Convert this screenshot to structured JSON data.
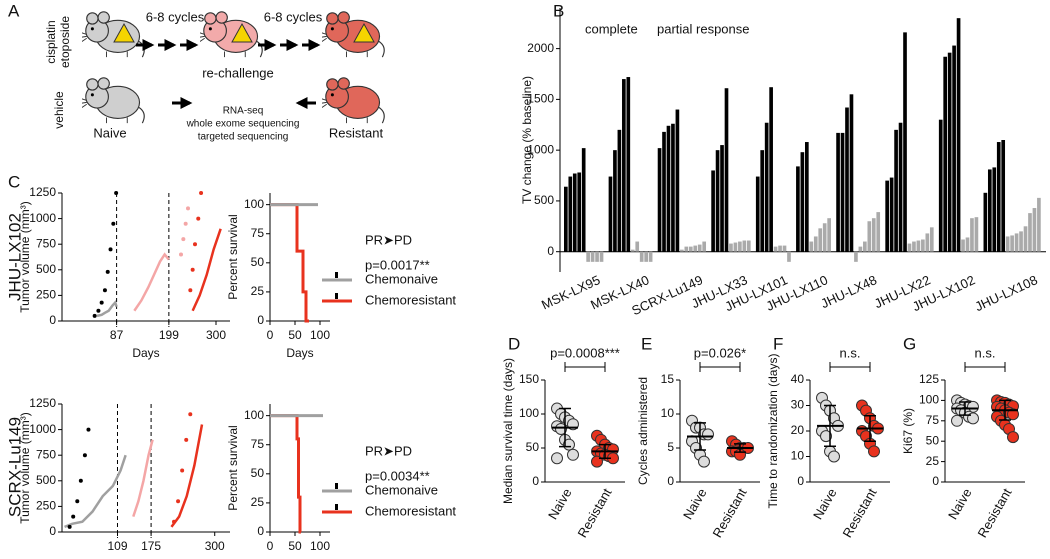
{
  "panel_labels": [
    "A",
    "B",
    "C",
    "D",
    "E",
    "F",
    "G"
  ],
  "row_labels": [
    "JHU-LX102",
    "SCRX-Lu149"
  ],
  "diagram": {
    "treatment_label": [
      "cisplatin",
      "etoposide"
    ],
    "control_label": "vehicle",
    "cycles": [
      "6-8 cycles",
      "6-8 cycles"
    ],
    "rechallenge": "re-challenge",
    "naive": "Naive",
    "resistant": "Resistant",
    "sequencing": [
      "RNA-seq",
      "whole exome sequencing",
      "targeted sequencing"
    ]
  },
  "chart_data": [
    {
      "type": "bar",
      "ylabel": "TV change (% baseline)",
      "annotations": [
        "complete",
        "partial response"
      ],
      "categories": [
        "MSK-LX95",
        "MSK-LX40",
        "SCRX-Lu149",
        "JHU-LX33",
        "JHU-LX101",
        "JHU-LX110",
        "JHU-LX48",
        "JHU-LX22",
        "JHU-LX102",
        "JHU-LX108"
      ],
      "series": [
        {
          "color": "#000000",
          "values": [
            [
              640,
              740,
              770,
              780,
              1020
            ],
            [
              740,
              1000,
              1200,
              1700,
              1720
            ],
            [
              1020,
              1180,
              1240,
              1260,
              1400
            ],
            [
              800,
              1000,
              1050,
              1610
            ],
            [
              740,
              1000,
              1270,
              1620
            ],
            [
              840,
              980,
              1080
            ],
            [
              1170,
              1170,
              1420,
              1550
            ],
            [
              700,
              730,
              1200,
              1270,
              2160
            ],
            [
              1300,
              1920,
              1960,
              2030,
              2300
            ],
            [
              580,
              810,
              830,
              1080,
              1100
            ]
          ]
        },
        {
          "color": "#aaaaaa",
          "values": [
            [
              -100,
              -100,
              -100,
              -100
            ],
            [
              20,
              100,
              -100,
              -100,
              -100
            ],
            [
              20,
              50,
              50,
              60,
              70,
              100
            ],
            [
              80,
              90,
              100,
              110,
              110
            ],
            [
              50,
              60,
              60,
              -100
            ],
            [
              100,
              150,
              230,
              280,
              330
            ],
            [
              -100,
              50,
              100,
              300,
              330,
              390
            ],
            [
              80,
              100,
              110,
              120,
              180,
              240
            ],
            [
              120,
              140,
              330,
              340
            ],
            [
              150,
              160,
              180,
              200,
              250,
              380,
              430,
              530
            ]
          ]
        }
      ],
      "ylim": [
        -200,
        2400
      ],
      "yticks": [
        0,
        500,
        1000,
        1500,
        2000
      ]
    },
    {
      "type": "line",
      "ylabel": "Tumor volume (mm³)",
      "xlabel": "Days",
      "xlim": [
        -30,
        330
      ],
      "xticks": [
        87,
        199,
        300
      ],
      "vlines": [
        87,
        199
      ],
      "ylim": [
        0,
        1250
      ],
      "yticks": [
        0,
        250,
        500,
        750,
        1000,
        1250
      ],
      "series": [
        {
          "color": "#000000",
          "style": "dotted",
          "x": [
            40,
            48,
            55,
            62,
            68,
            74,
            80,
            86
          ],
          "values": [
            50,
            100,
            180,
            300,
            480,
            700,
            950,
            1250
          ]
        },
        {
          "color": "#a0a0a0",
          "style": "solid",
          "x": [
            45,
            55,
            62,
            70,
            78,
            84,
            87
          ],
          "values": [
            50,
            60,
            80,
            100,
            150,
            180,
            140
          ]
        },
        {
          "color": "#f4a6a6",
          "style": "solid",
          "x": [
            125,
            140,
            155,
            170,
            180,
            190,
            199
          ],
          "values": [
            100,
            200,
            330,
            480,
            580,
            650,
            600
          ]
        },
        {
          "color": "#f4a6a6",
          "style": "dotted",
          "x": [
            225,
            230,
            235,
            240
          ],
          "values": [
            650,
            800,
            950,
            1100
          ]
        },
        {
          "color": "#e8321e",
          "style": "dotted",
          "x": [
            245,
            250,
            255,
            262,
            268
          ],
          "values": [
            300,
            500,
            750,
            1000,
            1250
          ]
        },
        {
          "color": "#e8321e",
          "style": "solid",
          "x": [
            250,
            265,
            280,
            295,
            310
          ],
          "values": [
            100,
            250,
            450,
            700,
            900
          ]
        }
      ]
    },
    {
      "type": "line",
      "ylabel": "Percent survival",
      "xlabel": "Days",
      "xlim": [
        0,
        120
      ],
      "xticks": [
        0,
        50,
        100
      ],
      "ylim": [
        0,
        110
      ],
      "yticks": [
        0,
        25,
        50,
        75,
        100
      ],
      "annotations": [
        "PR➤PD",
        "p=0.0017**"
      ],
      "series": [
        {
          "name": "Chemonaive",
          "color": "#a0a0a0",
          "style": "solid",
          "x": [
            0,
            96
          ],
          "values": [
            100,
            100
          ]
        },
        {
          "name": "Chemoresistant",
          "color": "#e8321e",
          "style": "solid",
          "x": [
            0,
            54,
            54,
            66,
            66,
            72,
            72,
            78
          ],
          "values": [
            100,
            100,
            60,
            60,
            25,
            25,
            0,
            0
          ]
        }
      ]
    },
    {
      "type": "line",
      "ylabel": "Tumor volume (mm³)",
      "xlabel": "Days",
      "xlim": [
        0,
        330
      ],
      "xticks": [
        109,
        175,
        300
      ],
      "vlines": [
        109,
        175
      ],
      "ylim": [
        0,
        1250
      ],
      "yticks": [
        0,
        250,
        500,
        750,
        1000,
        1250
      ],
      "series": [
        {
          "color": "#000000",
          "style": "dotted",
          "x": [
            15,
            22,
            30,
            37,
            45,
            52
          ],
          "values": [
            50,
            150,
            300,
            500,
            750,
            1000
          ]
        },
        {
          "color": "#a0a0a0",
          "style": "solid",
          "x": [
            5,
            20,
            40,
            60,
            80,
            100,
            115,
            125
          ],
          "values": [
            50,
            80,
            100,
            200,
            350,
            450,
            600,
            750
          ]
        },
        {
          "color": "#f4a6a6",
          "style": "solid",
          "x": [
            140,
            150,
            160,
            170,
            178
          ],
          "values": [
            150,
            300,
            500,
            750,
            900
          ]
        },
        {
          "color": "#e8321e",
          "style": "dotted",
          "x": [
            220,
            228,
            236,
            244,
            252
          ],
          "values": [
            100,
            300,
            600,
            900,
            1150
          ]
        },
        {
          "color": "#e8321e",
          "style": "solid",
          "x": [
            215,
            230,
            245,
            260,
            275
          ],
          "values": [
            50,
            150,
            350,
            650,
            1050
          ]
        }
      ]
    },
    {
      "type": "line",
      "ylabel": "Percent survival",
      "xlabel": "Days",
      "xlim": [
        0,
        120
      ],
      "xticks": [
        0,
        50,
        100
      ],
      "ylim": [
        0,
        110
      ],
      "yticks": [
        0,
        25,
        50,
        75,
        100
      ],
      "annotations": [
        "PR➤PD",
        "p=0.0034**"
      ],
      "series": [
        {
          "name": "Chemonaive",
          "color": "#a0a0a0",
          "style": "solid",
          "x": [
            0,
            106
          ],
          "values": [
            100,
            100
          ]
        },
        {
          "name": "Chemoresistant",
          "color": "#e8321e",
          "style": "solid",
          "x": [
            0,
            54,
            54,
            57,
            57,
            60,
            60,
            62
          ],
          "values": [
            100,
            100,
            80,
            80,
            30,
            30,
            0,
            0
          ]
        }
      ]
    },
    {
      "type": "dotplot",
      "ylabel": "Median survival time (days)",
      "annotation": "p=0.0008***",
      "categories": [
        "Naive",
        "Resistant"
      ],
      "values": [
        [
          108,
          100,
          95,
          90,
          85,
          82,
          78,
          62,
          55,
          40,
          35
        ],
        [
          68,
          62,
          55,
          50,
          48,
          45,
          42,
          40,
          38,
          35,
          30
        ]
      ],
      "means": [
        80,
        45
      ],
      "errors": [
        28,
        10
      ],
      "colors": [
        "#dddddd",
        "#e8321e"
      ],
      "ylim": [
        0,
        150
      ],
      "yticks": [
        0,
        50,
        100,
        150
      ]
    },
    {
      "type": "dotplot",
      "ylabel": "Cycles administered",
      "annotation": "p=0.026*",
      "categories": [
        "Naive",
        "Resistant"
      ],
      "values": [
        [
          9,
          8,
          8,
          7,
          7,
          6,
          5,
          4,
          3
        ],
        [
          6,
          5.5,
          5,
          5,
          5,
          4.5,
          4.5,
          4
        ]
      ],
      "means": [
        6.7,
        5
      ],
      "errors": [
        2,
        0.6
      ],
      "colors": [
        "#dddddd",
        "#e8321e"
      ],
      "ylim": [
        0,
        15
      ],
      "yticks": [
        0,
        5,
        10,
        15
      ]
    },
    {
      "type": "dotplot",
      "ylabel": "Time to randomization (days)",
      "annotation": "n.s.",
      "categories": [
        "Naive",
        "Resistant"
      ],
      "values": [
        [
          33,
          30,
          28,
          25,
          22,
          20,
          18,
          12,
          10
        ],
        [
          30,
          28,
          25,
          22,
          21,
          20,
          18,
          15,
          12
        ]
      ],
      "means": [
        22,
        21
      ],
      "errors": [
        8,
        5
      ],
      "colors": [
        "#dddddd",
        "#e8321e"
      ],
      "ylim": [
        0,
        40
      ],
      "yticks": [
        0,
        10,
        20,
        30,
        40
      ]
    },
    {
      "type": "dotplot",
      "ylabel": "Ki67 (%)",
      "annotation": "n.s.",
      "categories": [
        "Naive",
        "Resistant"
      ],
      "values": [
        [
          100,
          97,
          95,
          93,
          92,
          90,
          88,
          85,
          80,
          78,
          75
        ],
        [
          100,
          98,
          97,
          95,
          93,
          92,
          90,
          88,
          85,
          83,
          80,
          75,
          70,
          65,
          55
        ]
      ],
      "means": [
        90,
        88
      ],
      "errors": [
        8,
        12
      ],
      "colors": [
        "#dddddd",
        "#e8321e"
      ],
      "ylim": [
        0,
        125
      ],
      "yticks": [
        0,
        25,
        50,
        75,
        100,
        125
      ]
    }
  ]
}
